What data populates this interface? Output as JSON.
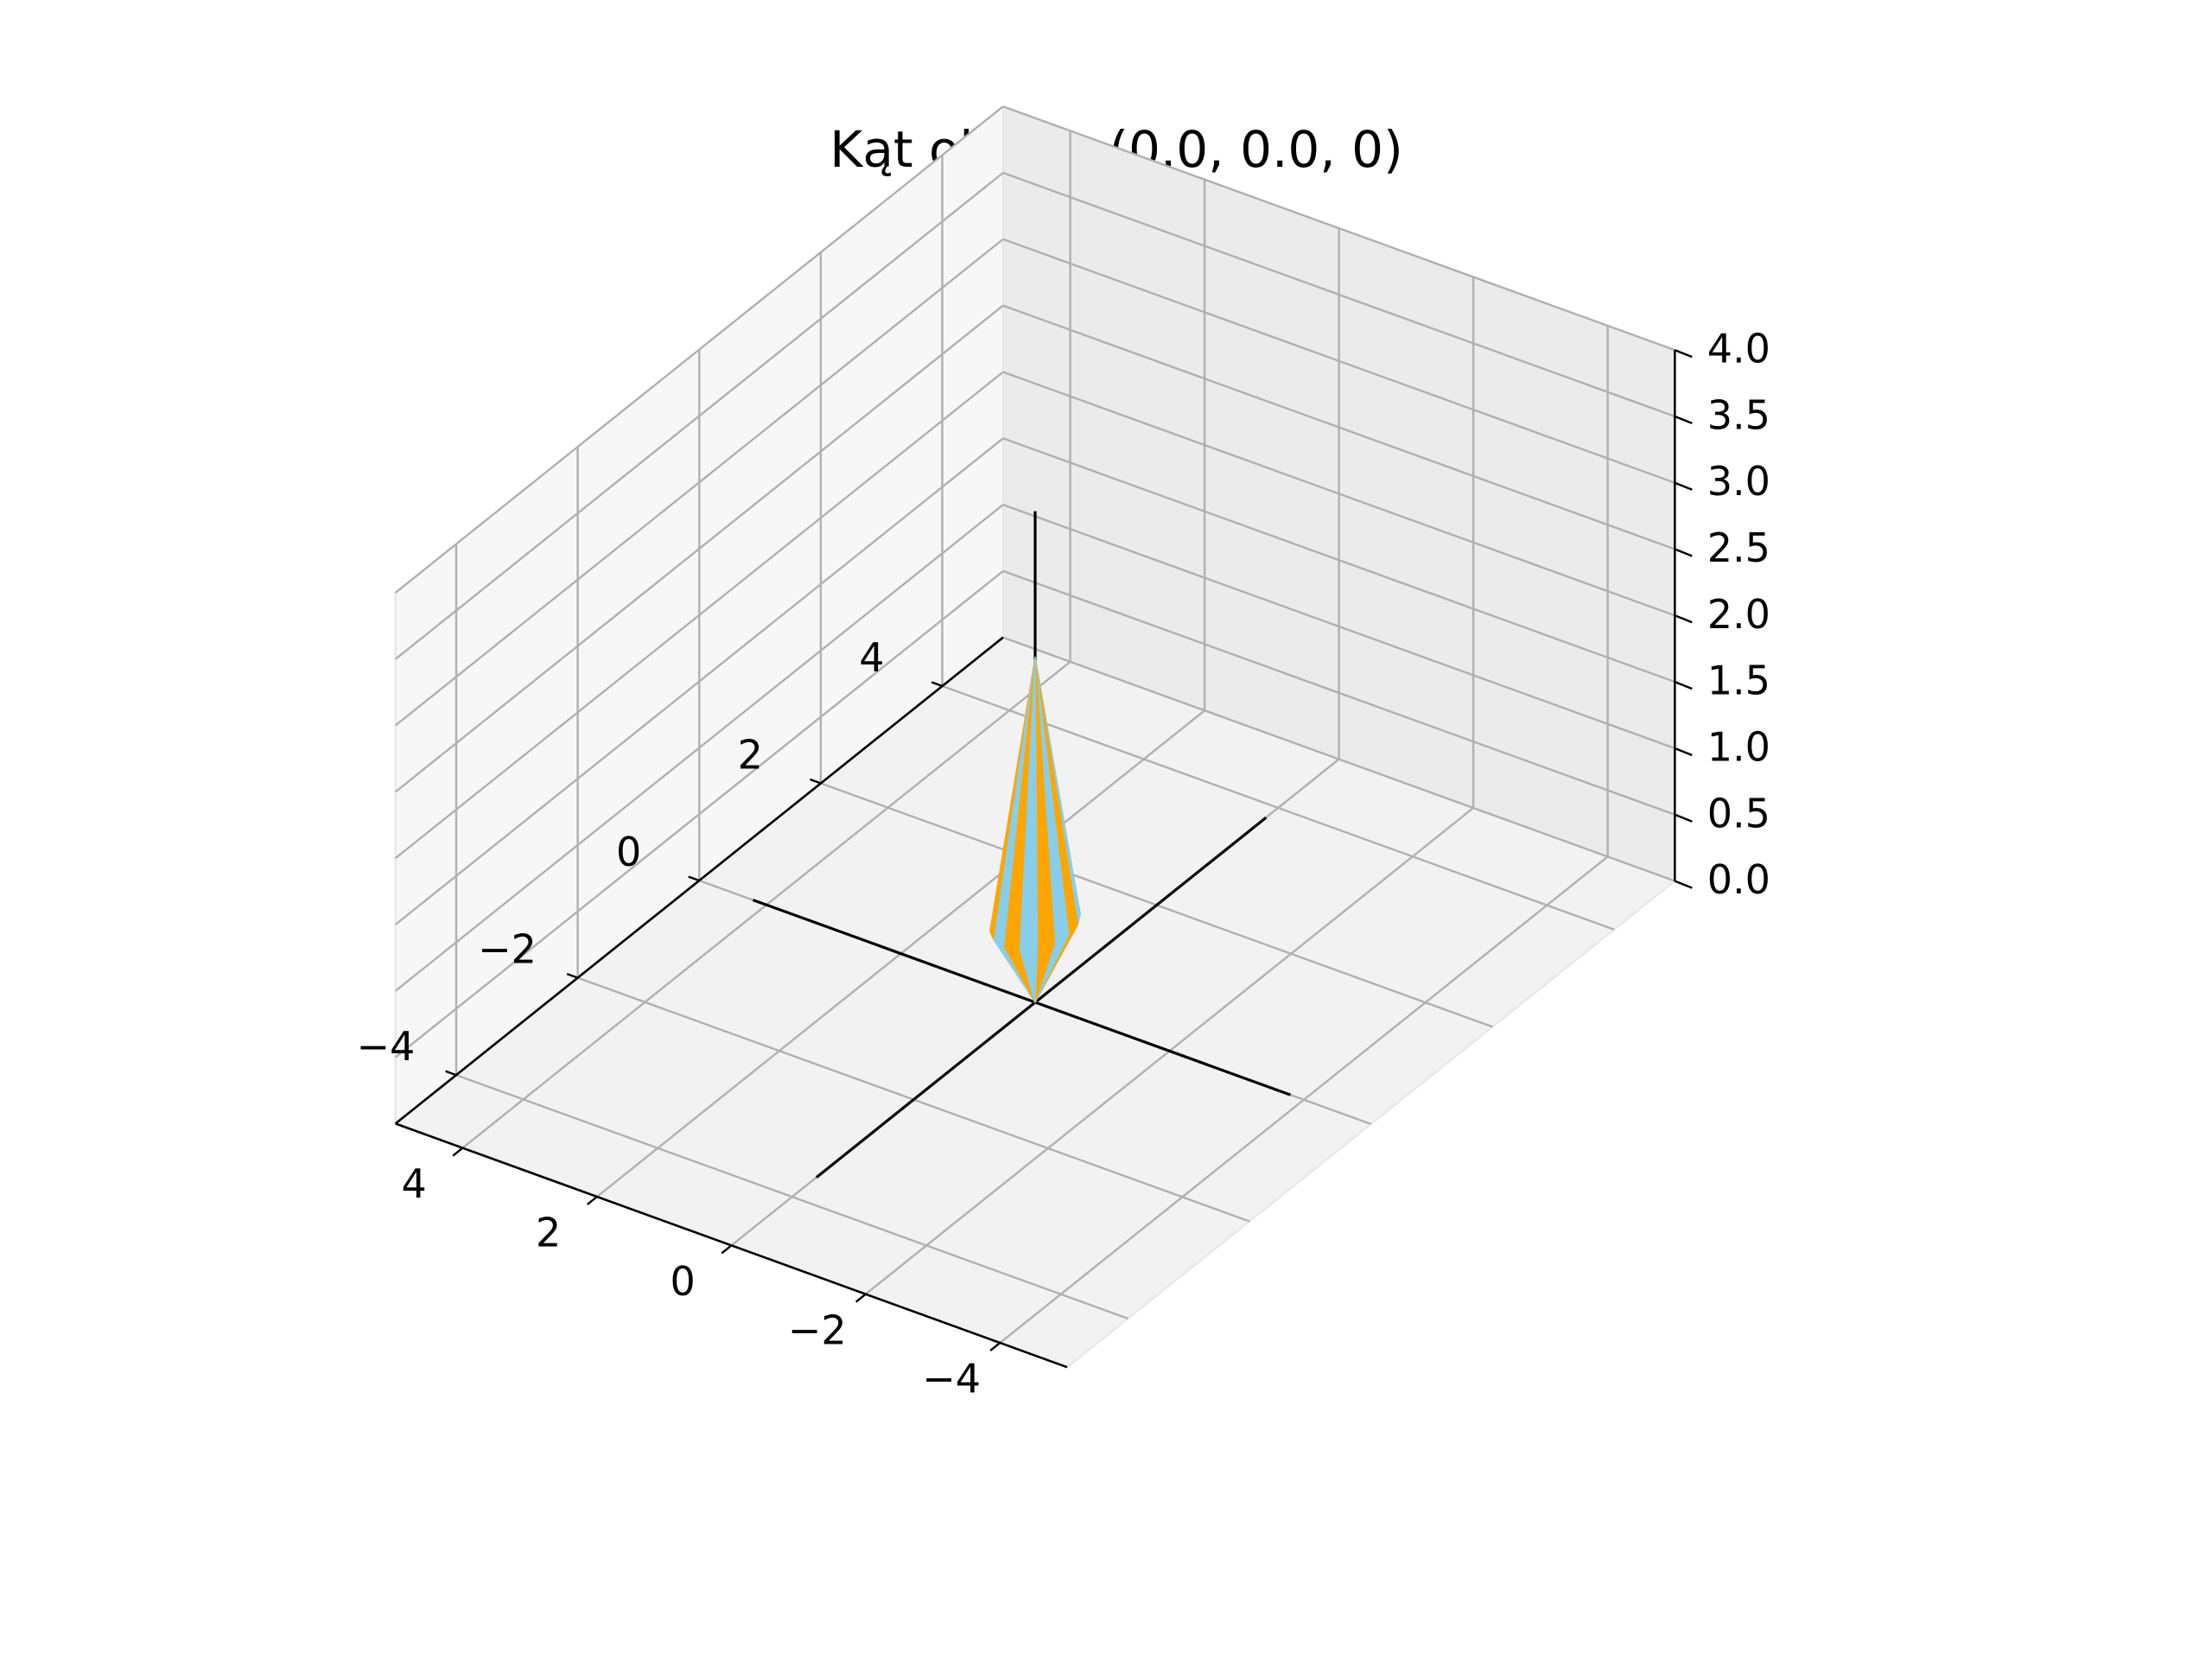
{
  "chart_data": {
    "type": "surface3d",
    "title": "Kąt obrotu (0.0, 0.0, 0)",
    "xlabel": "",
    "ylabel": "",
    "zlabel": "",
    "xlim": [
      -5,
      5
    ],
    "ylim": [
      -5,
      5
    ],
    "zlim": [
      0,
      4
    ],
    "x_ticks": [
      -4,
      -2,
      0,
      2,
      4
    ],
    "y_ticks": [
      -4,
      -2,
      0,
      2,
      4
    ],
    "z_ticks": [
      0.0,
      0.5,
      1.0,
      1.5,
      2.0,
      2.5,
      3.0,
      3.5,
      4.0
    ],
    "x_tick_labels": [
      "−4",
      "−2",
      "0",
      "2",
      "4"
    ],
    "y_tick_labels": [
      "−4",
      "−2",
      "0",
      "2",
      "4"
    ],
    "z_tick_labels": [
      "0.0",
      "0.5",
      "1.0",
      "1.5",
      "2.0",
      "2.5",
      "3.0",
      "3.5",
      "4.0"
    ],
    "grid": true,
    "pane_color": "#f2f2f2",
    "grid_color": "#b0b0b0",
    "stripe_colors": [
      "#87ceeb",
      "#ffa500"
    ],
    "spinning_top": {
      "bottom_cone": {
        "z_tip": 0.0,
        "z_rim": 0.6,
        "rim_radius": 0.5
      },
      "top_cone": {
        "z_base": 0.6,
        "z_tip": 2.6,
        "base_radius": 0.5
      },
      "segments": 16
    },
    "reference_axes": [
      {
        "name": "x-axis-line",
        "from": [
          -3.8,
          0,
          0
        ],
        "to": [
          4.2,
          0,
          0
        ]
      },
      {
        "name": "y-axis-line",
        "from": [
          0,
          -3.6,
          0
        ],
        "to": [
          0,
          3.8,
          0
        ]
      },
      {
        "name": "z-axis-line",
        "from": [
          0,
          0,
          0
        ],
        "to": [
          0,
          0,
          3.7
        ]
      }
    ]
  }
}
